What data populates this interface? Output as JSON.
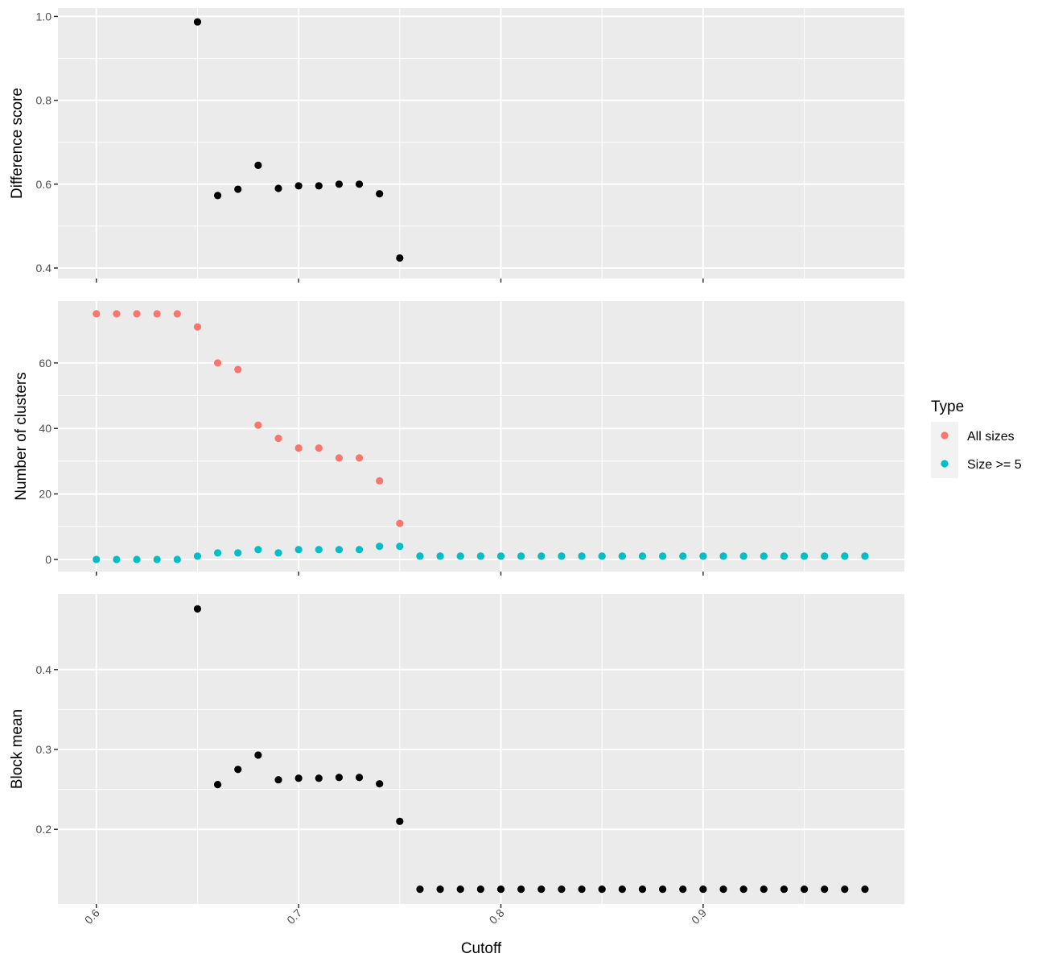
{
  "chart_data": {
    "type": "scatter",
    "x_label": "Cutoff",
    "x_ticks": [
      0.6,
      0.7,
      0.8,
      0.9
    ],
    "x_tick_labels": [
      "0.6",
      "0.7",
      "0.8",
      "0.9"
    ],
    "x_range": [
      0.581,
      0.9995
    ],
    "panels": [
      {
        "id": "difference",
        "ylabel": "Difference score",
        "ylim": [
          0.375,
          1.02
        ],
        "y_ticks": [
          0.4,
          0.6,
          0.8,
          1.0
        ],
        "y_tick_labels": [
          "0.4",
          "0.6",
          "0.8",
          "1.0"
        ],
        "series": [
          {
            "color": "#000000",
            "points": [
              [
                0.65,
                0.987
              ],
              [
                0.66,
                0.573
              ],
              [
                0.67,
                0.588
              ],
              [
                0.68,
                0.645
              ],
              [
                0.69,
                0.59
              ],
              [
                0.7,
                0.596
              ],
              [
                0.71,
                0.596
              ],
              [
                0.72,
                0.6
              ],
              [
                0.73,
                0.6
              ],
              [
                0.74,
                0.577
              ],
              [
                0.75,
                0.424
              ]
            ]
          }
        ]
      },
      {
        "id": "clusters",
        "ylabel": "Number of clusters",
        "ylim": [
          -3.7,
          78.9
        ],
        "y_ticks": [
          0,
          20,
          40,
          60
        ],
        "y_tick_labels": [
          "0",
          "20",
          "40",
          "60"
        ],
        "series": [
          {
            "name": "All sizes",
            "color": "#F8766D",
            "points": [
              [
                0.6,
                75
              ],
              [
                0.61,
                75
              ],
              [
                0.62,
                75
              ],
              [
                0.63,
                75
              ],
              [
                0.64,
                75
              ],
              [
                0.65,
                71
              ],
              [
                0.66,
                60
              ],
              [
                0.67,
                58
              ],
              [
                0.68,
                41
              ],
              [
                0.69,
                37
              ],
              [
                0.7,
                34
              ],
              [
                0.71,
                34
              ],
              [
                0.72,
                31
              ],
              [
                0.73,
                31
              ],
              [
                0.74,
                24
              ],
              [
                0.75,
                11
              ],
              [
                0.76,
                1
              ],
              [
                0.77,
                1
              ],
              [
                0.78,
                1
              ],
              [
                0.79,
                1
              ],
              [
                0.8,
                1
              ],
              [
                0.81,
                1
              ],
              [
                0.82,
                1
              ],
              [
                0.83,
                1
              ],
              [
                0.84,
                1
              ],
              [
                0.85,
                1
              ],
              [
                0.86,
                1
              ],
              [
                0.87,
                1
              ],
              [
                0.88,
                1
              ],
              [
                0.89,
                1
              ],
              [
                0.9,
                1
              ],
              [
                0.91,
                1
              ],
              [
                0.92,
                1
              ],
              [
                0.93,
                1
              ],
              [
                0.94,
                1
              ],
              [
                0.95,
                1
              ],
              [
                0.96,
                1
              ],
              [
                0.97,
                1
              ],
              [
                0.98,
                1
              ]
            ]
          },
          {
            "name": "Size >= 5",
            "color": "#00BFC4",
            "points": [
              [
                0.6,
                0
              ],
              [
                0.61,
                0
              ],
              [
                0.62,
                0
              ],
              [
                0.63,
                0
              ],
              [
                0.64,
                0
              ],
              [
                0.65,
                1
              ],
              [
                0.66,
                2
              ],
              [
                0.67,
                2
              ],
              [
                0.68,
                3
              ],
              [
                0.69,
                2
              ],
              [
                0.7,
                3
              ],
              [
                0.71,
                3
              ],
              [
                0.72,
                3
              ],
              [
                0.73,
                3
              ],
              [
                0.74,
                4
              ],
              [
                0.75,
                4
              ],
              [
                0.76,
                1
              ],
              [
                0.77,
                1
              ],
              [
                0.78,
                1
              ],
              [
                0.79,
                1
              ],
              [
                0.8,
                1
              ],
              [
                0.81,
                1
              ],
              [
                0.82,
                1
              ],
              [
                0.83,
                1
              ],
              [
                0.84,
                1
              ],
              [
                0.85,
                1
              ],
              [
                0.86,
                1
              ],
              [
                0.87,
                1
              ],
              [
                0.88,
                1
              ],
              [
                0.89,
                1
              ],
              [
                0.9,
                1
              ],
              [
                0.91,
                1
              ],
              [
                0.92,
                1
              ],
              [
                0.93,
                1
              ],
              [
                0.94,
                1
              ],
              [
                0.95,
                1
              ],
              [
                0.96,
                1
              ],
              [
                0.97,
                1
              ],
              [
                0.98,
                1
              ]
            ]
          }
        ]
      },
      {
        "id": "blockmean",
        "ylabel": "Block mean",
        "ylim": [
          0.1065,
          0.4945
        ],
        "y_ticks": [
          0.2,
          0.3,
          0.4
        ],
        "y_tick_labels": [
          "0.2",
          "0.3",
          "0.4"
        ],
        "series": [
          {
            "color": "#000000",
            "points": [
              [
                0.65,
                0.476
              ],
              [
                0.66,
                0.256
              ],
              [
                0.67,
                0.275
              ],
              [
                0.68,
                0.293
              ],
              [
                0.69,
                0.262
              ],
              [
                0.7,
                0.264
              ],
              [
                0.71,
                0.264
              ],
              [
                0.72,
                0.265
              ],
              [
                0.73,
                0.265
              ],
              [
                0.74,
                0.257
              ],
              [
                0.75,
                0.21
              ],
              [
                0.76,
                0.125
              ],
              [
                0.77,
                0.125
              ],
              [
                0.78,
                0.125
              ],
              [
                0.79,
                0.125
              ],
              [
                0.8,
                0.125
              ],
              [
                0.81,
                0.125
              ],
              [
                0.82,
                0.125
              ],
              [
                0.83,
                0.125
              ],
              [
                0.84,
                0.125
              ],
              [
                0.85,
                0.125
              ],
              [
                0.86,
                0.125
              ],
              [
                0.87,
                0.125
              ],
              [
                0.88,
                0.125
              ],
              [
                0.89,
                0.125
              ],
              [
                0.9,
                0.125
              ],
              [
                0.91,
                0.125
              ],
              [
                0.92,
                0.125
              ],
              [
                0.93,
                0.125
              ],
              [
                0.94,
                0.125
              ],
              [
                0.95,
                0.125
              ],
              [
                0.96,
                0.125
              ],
              [
                0.97,
                0.125
              ],
              [
                0.98,
                0.125
              ]
            ]
          }
        ]
      }
    ],
    "legend": {
      "title": "Type",
      "placement": "right",
      "entries": [
        {
          "label": "All sizes",
          "color": "#F8766D"
        },
        {
          "label": "Size >= 5",
          "color": "#00BFC4"
        }
      ]
    },
    "grid": true,
    "panel_background": "#EBEBEB",
    "grid_color": "#FFFFFF"
  }
}
